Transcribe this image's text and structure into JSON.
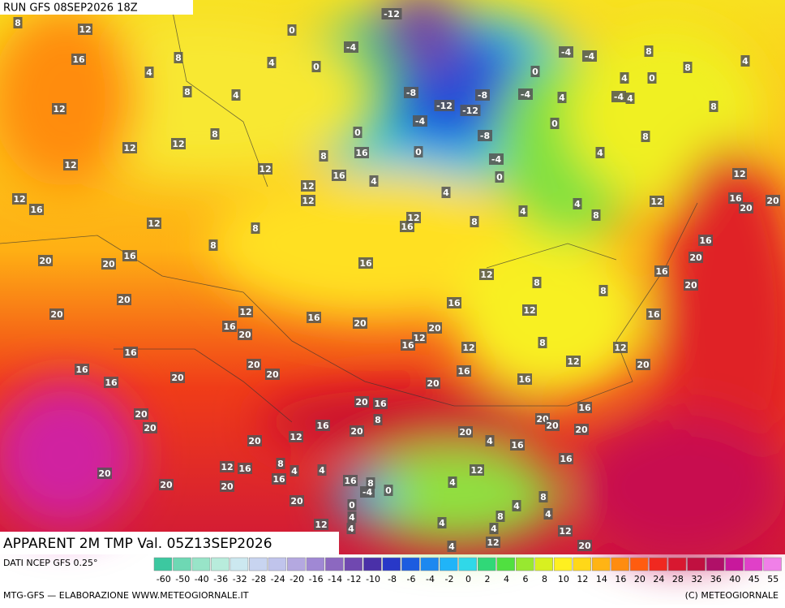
{
  "header": {
    "run": "RUN GFS 08SEP2026 18Z"
  },
  "map": {
    "title": "APPARENT 2M TMP Val. 05Z13SEP2026",
    "labels": [
      -12,
      0,
      -4,
      4,
      0,
      -4,
      -4,
      0,
      -8,
      -12,
      -8,
      -4,
      4,
      -4,
      -4,
      -12,
      -8,
      0,
      -4,
      0,
      0,
      0,
      4,
      4,
      8,
      12,
      12,
      16,
      12,
      12,
      12,
      8,
      12,
      12,
      12,
      12,
      12,
      12,
      16,
      8,
      8,
      16,
      12,
      16,
      8,
      4,
      4,
      8,
      12,
      16,
      20,
      20,
      16,
      20,
      20,
      16,
      16,
      8,
      8,
      12,
      16,
      12,
      8,
      12,
      12,
      20,
      20,
      20,
      16,
      20,
      20,
      16,
      12,
      20,
      16,
      20,
      20,
      12,
      16,
      12,
      20,
      20,
      20,
      16,
      16,
      16,
      16,
      16,
      20,
      20,
      16,
      8,
      16,
      20,
      20,
      16,
      20,
      20,
      20,
      4,
      16,
      16,
      20,
      20,
      20,
      12,
      12,
      16,
      8,
      20,
      20,
      20,
      16,
      4,
      4,
      12,
      16,
      8,
      -4,
      0,
      4,
      8,
      4,
      20,
      0,
      12,
      4,
      4,
      8,
      4,
      4,
      12,
      12,
      4,
      20,
      4,
      8,
      8,
      4,
      4,
      0,
      4,
      8,
      8,
      4,
      8,
      4,
      8,
      16,
      16,
      4,
      8
    ]
  },
  "legend": {
    "source": "DATI NCEP GFS 0.25°",
    "ticks": [
      "-60",
      "-50",
      "-40",
      "-36",
      "-32",
      "-28",
      "-24",
      "-20",
      "-16",
      "-14",
      "-12",
      "-10",
      "-8",
      "-6",
      "-4",
      "-2",
      "0",
      "2",
      "4",
      "6",
      "8",
      "10",
      "12",
      "14",
      "16",
      "20",
      "24",
      "28",
      "32",
      "36",
      "40",
      "45",
      "55"
    ],
    "colors": [
      "#3cc8a0",
      "#6ed8b4",
      "#98e4c8",
      "#b8ecdc",
      "#cce8f0",
      "#c8d4f0",
      "#c0c4ec",
      "#b4a8e0",
      "#a088d4",
      "#8c68c0",
      "#7048b0",
      "#4a30a8",
      "#2838c8",
      "#1c5ce0",
      "#1c88f0",
      "#20b4f8",
      "#30d8e8",
      "#30d878",
      "#50e040",
      "#98e830",
      "#d8f020",
      "#fff020",
      "#ffd818",
      "#ffb414",
      "#ff8c10",
      "#ff5c10",
      "#f02820",
      "#d81830",
      "#c01040",
      "#b01068",
      "#c8189c",
      "#e040c8",
      "#f080e8"
    ]
  },
  "footer": {
    "left": "MTG-GFS — ELABORAZIONE WWW.METEOGIORNALE.IT",
    "right": "(C) METEOGIORNALE"
  }
}
